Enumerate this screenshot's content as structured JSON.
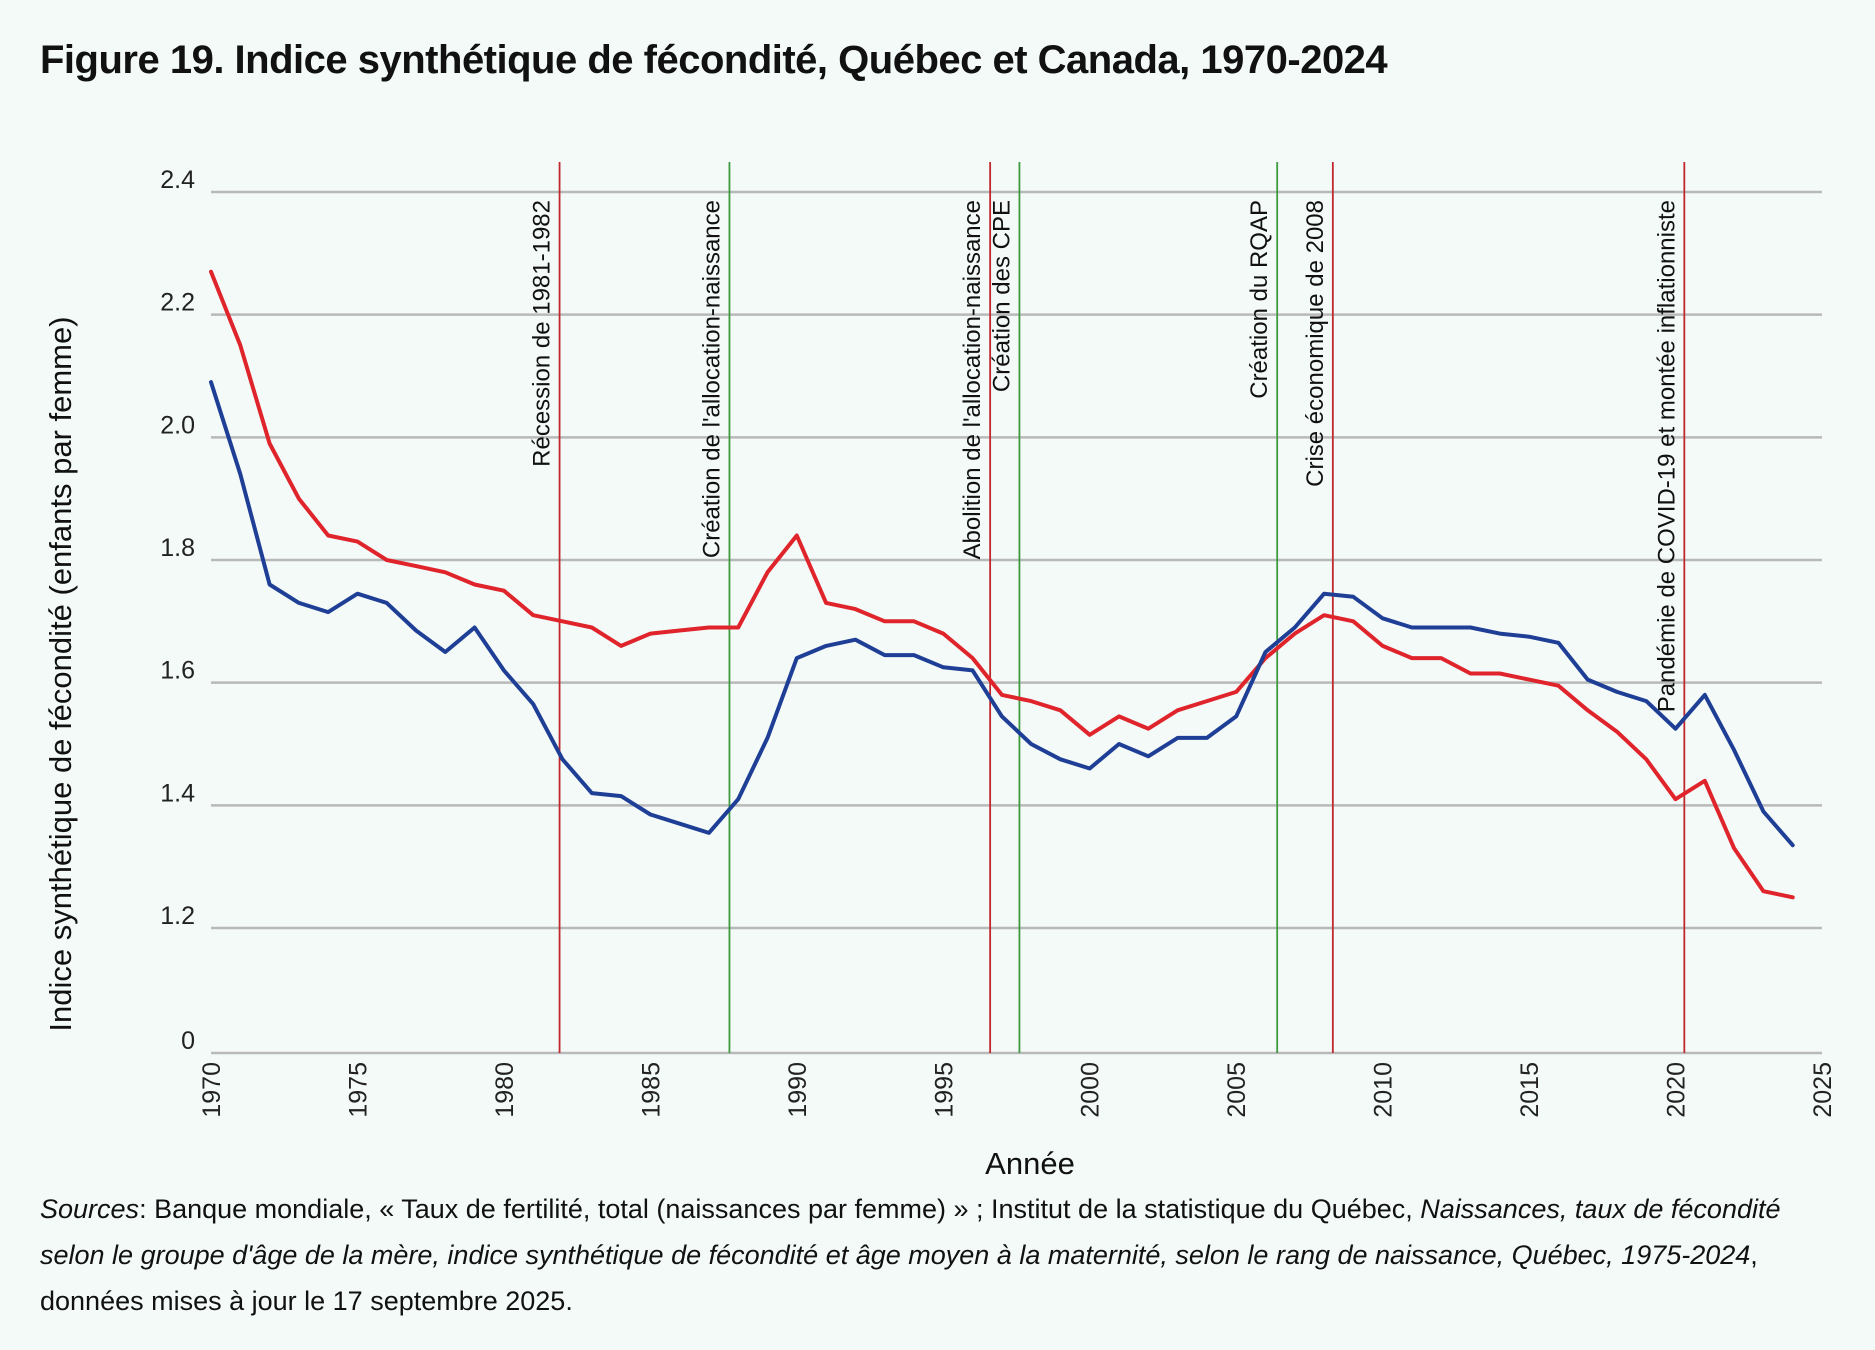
{
  "title": "Figure 19. Indice synthétique de fécondité, Québec et Canada, 1970-2024",
  "colors": {
    "canada": "#e0242b",
    "quebec": "#1f3f96",
    "grid": "#b9b9b9",
    "event_red": "#c0282d",
    "event_green": "#3e9a3e",
    "background": "#f3faf8"
  },
  "chart_data": {
    "type": "line",
    "title": "Figure 19. Indice synthétique de fécondité, Québec et Canada, 1970-2024",
    "xlabel": "Année",
    "ylabel": "Indice synthétique de fécondité (enfants par femme)",
    "xlim": [
      1970,
      2025
    ],
    "ylim": [
      1.2,
      2.4
    ],
    "y_axis_break": true,
    "xticks": [
      1970,
      1975,
      1980,
      1985,
      1990,
      1995,
      2000,
      2005,
      2010,
      2015,
      2020,
      2025
    ],
    "yticks": [
      {
        "value": 2.4,
        "label": "2.4"
      },
      {
        "value": 2.2,
        "label": "2.2"
      },
      {
        "value": 2.0,
        "label": "2.0"
      },
      {
        "value": 1.8,
        "label": "1.8"
      },
      {
        "value": 1.6,
        "label": "1.6"
      },
      {
        "value": 1.4,
        "label": "1.4"
      },
      {
        "value": 1.2,
        "label": "1.2"
      },
      {
        "value": 0,
        "label": "0"
      }
    ],
    "grid": true,
    "legend": false,
    "x": [
      1970,
      1971,
      1972,
      1973,
      1974,
      1975,
      1976,
      1977,
      1978,
      1979,
      1980,
      1981,
      1982,
      1983,
      1984,
      1985,
      1986,
      1987,
      1988,
      1989,
      1990,
      1991,
      1992,
      1993,
      1994,
      1995,
      1996,
      1997,
      1998,
      1999,
      2000,
      2001,
      2002,
      2003,
      2004,
      2005,
      2006,
      2007,
      2008,
      2009,
      2010,
      2011,
      2012,
      2013,
      2014,
      2015,
      2016,
      2017,
      2018,
      2019,
      2020,
      2021,
      2022,
      2023,
      2024
    ],
    "series": [
      {
        "color": "#e0242b",
        "values": [
          2.27,
          2.15,
          1.99,
          1.9,
          1.84,
          1.83,
          1.8,
          1.79,
          1.78,
          1.76,
          1.75,
          1.71,
          1.7,
          1.69,
          1.66,
          1.68,
          1.685,
          1.69,
          1.69,
          1.78,
          1.84,
          1.73,
          1.72,
          1.7,
          1.7,
          1.68,
          1.64,
          1.58,
          1.57,
          1.555,
          1.515,
          1.545,
          1.525,
          1.555,
          1.57,
          1.585,
          1.64,
          1.68,
          1.71,
          1.7,
          1.66,
          1.64,
          1.64,
          1.615,
          1.615,
          1.605,
          1.595,
          1.555,
          1.52,
          1.475,
          1.41,
          1.44,
          1.33,
          1.26,
          1.25
        ]
      },
      {
        "color": "#1f3f96",
        "values": [
          2.09,
          1.94,
          1.76,
          1.73,
          1.715,
          1.745,
          1.73,
          1.685,
          1.65,
          1.69,
          1.62,
          1.565,
          1.475,
          1.42,
          1.415,
          1.385,
          1.37,
          1.355,
          1.41,
          1.51,
          1.64,
          1.66,
          1.67,
          1.645,
          1.645,
          1.625,
          1.62,
          1.545,
          1.5,
          1.475,
          1.46,
          1.5,
          1.48,
          1.51,
          1.51,
          1.545,
          1.65,
          1.69,
          1.745,
          1.74,
          1.705,
          1.69,
          1.69,
          1.69,
          1.68,
          1.675,
          1.665,
          1.605,
          1.585,
          1.57,
          1.525,
          1.58,
          1.49,
          1.39,
          1.335
        ]
      }
    ],
    "annotations": [
      {
        "x": 1981.9,
        "label": "Récession de 1981-1982",
        "color": "#c0282d"
      },
      {
        "x": 1987.7,
        "label": "Création de l'allocation-naissance",
        "color": "#3e9a3e"
      },
      {
        "x": 1996.6,
        "label": "Abolition de l'allocation-naissance",
        "color": "#c0282d"
      },
      {
        "x": 1997.6,
        "label": "Création des CPE",
        "color": "#3e9a3e"
      },
      {
        "x": 2006.4,
        "label": "Création du RQAP",
        "color": "#3e9a3e"
      },
      {
        "x": 2008.3,
        "label": "Crise économique de 2008",
        "color": "#c0282d"
      },
      {
        "x": 2020.3,
        "label": "Pandémie de COVID-19 et montée inflationniste",
        "color": "#c0282d"
      }
    ]
  },
  "sources": {
    "label": "Sources",
    "part1": ": Banque mondiale, « Taux de fertilité, total (naissances par femme) » ; Institut de la statistique du Québec, ",
    "title_italic": "Naissances, taux de fécondité selon le groupe d'âge de la mère, indice synthétique de fécondité et âge moyen à la maternité, selon le rang de naissance, Québec, 1975-2024",
    "part2": ", données mises à jour le 17 septembre 2025."
  }
}
